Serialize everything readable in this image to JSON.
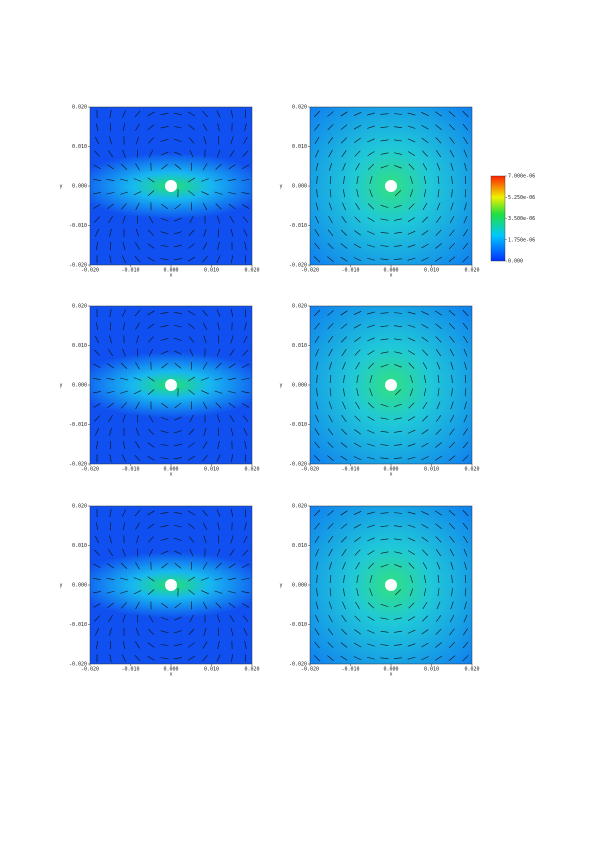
{
  "chart_data": [
    {
      "type": "field",
      "xlabel": "x",
      "ylabel": "y",
      "xlim": [
        -0.02,
        0.02
      ],
      "ylim": [
        -0.02,
        0.02
      ],
      "xticks": [
        {
          "value": -0.02,
          "label": "-0.020"
        },
        {
          "value": -0.01,
          "label": "-0.010"
        },
        {
          "value": 0,
          "label": "0.000"
        },
        {
          "value": 0.01,
          "label": "0.010"
        },
        {
          "value": 0.02,
          "label": "0.020"
        }
      ],
      "yticks": [
        {
          "value": -0.02,
          "label": "-0.020"
        },
        {
          "value": -0.01,
          "label": "-0.010"
        },
        {
          "value": 0,
          "label": "0.000"
        },
        {
          "value": 0.01,
          "label": "0.010"
        },
        {
          "value": 0.02,
          "label": "0.020"
        }
      ]
    },
    {
      "type": "field",
      "xlabel": "x",
      "ylabel": "y",
      "xlim": [
        -0.02,
        0.02
      ],
      "ylim": [
        -0.02,
        0.02
      ],
      "xticks": [
        {
          "value": -0.02,
          "label": "-0.020"
        },
        {
          "value": -0.01,
          "label": "-0.010"
        },
        {
          "value": 0,
          "label": "0.000"
        },
        {
          "value": 0.01,
          "label": "0.010"
        },
        {
          "value": 0.02,
          "label": "0.020"
        }
      ],
      "yticks": [
        {
          "value": -0.02,
          "label": "-0.020"
        },
        {
          "value": -0.01,
          "label": "-0.010"
        },
        {
          "value": 0,
          "label": "0.000"
        },
        {
          "value": 0.01,
          "label": "0.010"
        },
        {
          "value": 0.02,
          "label": "0.020"
        }
      ]
    },
    {
      "type": "field",
      "xlabel": "x",
      "ylabel": "y",
      "xlim": [
        -0.02,
        0.02
      ],
      "ylim": [
        -0.02,
        0.02
      ],
      "xticks": [
        {
          "value": -0.02,
          "label": "-0.020"
        },
        {
          "value": -0.01,
          "label": "-0.010"
        },
        {
          "value": 0,
          "label": "0.000"
        },
        {
          "value": 0.01,
          "label": "0.010"
        },
        {
          "value": 0.02,
          "label": "0.020"
        }
      ],
      "yticks": [
        {
          "value": -0.02,
          "label": "-0.020"
        },
        {
          "value": -0.01,
          "label": "-0.010"
        },
        {
          "value": 0,
          "label": "0.000"
        },
        {
          "value": 0.01,
          "label": "0.010"
        },
        {
          "value": 0.02,
          "label": "0.020"
        }
      ]
    },
    {
      "type": "field",
      "xlabel": "x",
      "ylabel": "y",
      "xlim": [
        -0.02,
        0.02
      ],
      "ylim": [
        -0.02,
        0.02
      ],
      "xticks": [
        {
          "value": -0.02,
          "label": "-0.020"
        },
        {
          "value": -0.01,
          "label": "-0.010"
        },
        {
          "value": 0,
          "label": "0.000"
        },
        {
          "value": 0.01,
          "label": "0.010"
        },
        {
          "value": 0.02,
          "label": "0.020"
        }
      ],
      "yticks": [
        {
          "value": -0.02,
          "label": "-0.020"
        },
        {
          "value": -0.01,
          "label": "-0.010"
        },
        {
          "value": 0,
          "label": "0.000"
        },
        {
          "value": 0.01,
          "label": "0.010"
        },
        {
          "value": 0.02,
          "label": "0.020"
        }
      ]
    },
    {
      "type": "field",
      "xlabel": "x",
      "ylabel": "y",
      "xlim": [
        -0.02,
        0.02
      ],
      "ylim": [
        -0.02,
        0.02
      ],
      "xticks": [
        {
          "value": -0.02,
          "label": "-0.020"
        },
        {
          "value": -0.01,
          "label": "-0.010"
        },
        {
          "value": 0,
          "label": "0.000"
        },
        {
          "value": 0.01,
          "label": "0.010"
        },
        {
          "value": 0.02,
          "label": "0.020"
        }
      ],
      "yticks": [
        {
          "value": -0.02,
          "label": "-0.020"
        },
        {
          "value": -0.01,
          "label": "-0.010"
        },
        {
          "value": 0,
          "label": "0.000"
        },
        {
          "value": 0.01,
          "label": "0.010"
        },
        {
          "value": 0.02,
          "label": "0.020"
        }
      ]
    },
    {
      "type": "field",
      "xlabel": "x",
      "ylabel": "y",
      "xlim": [
        -0.02,
        0.02
      ],
      "ylim": [
        -0.02,
        0.02
      ],
      "xticks": [
        {
          "value": -0.02,
          "label": "-0.020"
        },
        {
          "value": -0.01,
          "label": "-0.010"
        },
        {
          "value": 0,
          "label": "0.000"
        },
        {
          "value": 0.01,
          "label": "0.010"
        },
        {
          "value": 0.02,
          "label": "0.020"
        }
      ],
      "yticks": [
        {
          "value": -0.02,
          "label": "-0.020"
        },
        {
          "value": -0.01,
          "label": "-0.010"
        },
        {
          "value": 0,
          "label": "0.000"
        },
        {
          "value": 0.01,
          "label": "0.010"
        },
        {
          "value": 0.02,
          "label": "0.020"
        }
      ]
    },
    {
      "type": "colorbar",
      "ylim": [
        0,
        7e-06
      ],
      "yticks": [
        {
          "value": 0,
          "label": "0.000"
        },
        {
          "value": 1.75e-06,
          "label": "1.750e-06"
        },
        {
          "value": 3.5e-06,
          "label": "3.500e-06"
        },
        {
          "value": 5.25e-06,
          "label": "5.250e-06"
        },
        {
          "value": 7e-06,
          "label": "7.000e-06"
        }
      ]
    }
  ]
}
